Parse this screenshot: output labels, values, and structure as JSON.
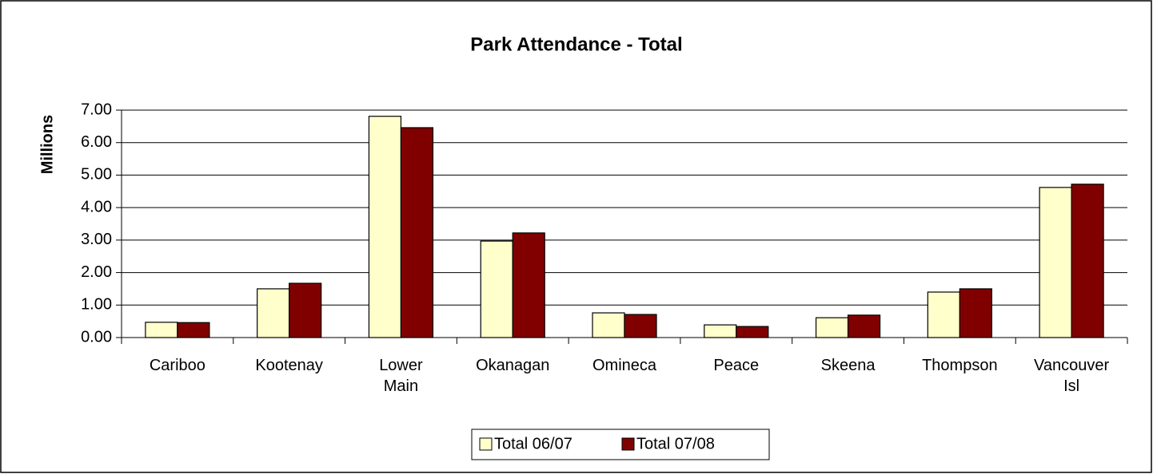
{
  "chart_data": {
    "type": "bar",
    "title": "Park Attendance - Total",
    "y_label": "Millions",
    "categories": [
      "Cariboo",
      "Kootenay",
      "Lower Main",
      "Okanagan",
      "Omineca",
      "Peace",
      "Skeena",
      "Thompson",
      "Vancouver Isl"
    ],
    "series": [
      {
        "name": "Total 06/07",
        "color": "#ffffcc",
        "values": [
          0.47,
          1.5,
          6.81,
          2.97,
          0.76,
          0.39,
          0.61,
          1.4,
          4.62
        ]
      },
      {
        "name": "Total 07/08",
        "color": "#800000",
        "values": [
          0.46,
          1.67,
          6.46,
          3.22,
          0.71,
          0.34,
          0.69,
          1.5,
          4.72
        ]
      }
    ],
    "ylim": [
      0,
      7
    ],
    "yticks": [
      {
        "value": 0,
        "label": "0.00"
      },
      {
        "value": 1,
        "label": "1.00"
      },
      {
        "value": 2,
        "label": "2.00"
      },
      {
        "value": 3,
        "label": "3.00"
      },
      {
        "value": 4,
        "label": "4.00"
      },
      {
        "value": 5,
        "label": "5.00"
      },
      {
        "value": 6,
        "label": "6.00"
      },
      {
        "value": 7,
        "label": "7.00"
      }
    ],
    "grid": true,
    "legend": "bottom"
  }
}
